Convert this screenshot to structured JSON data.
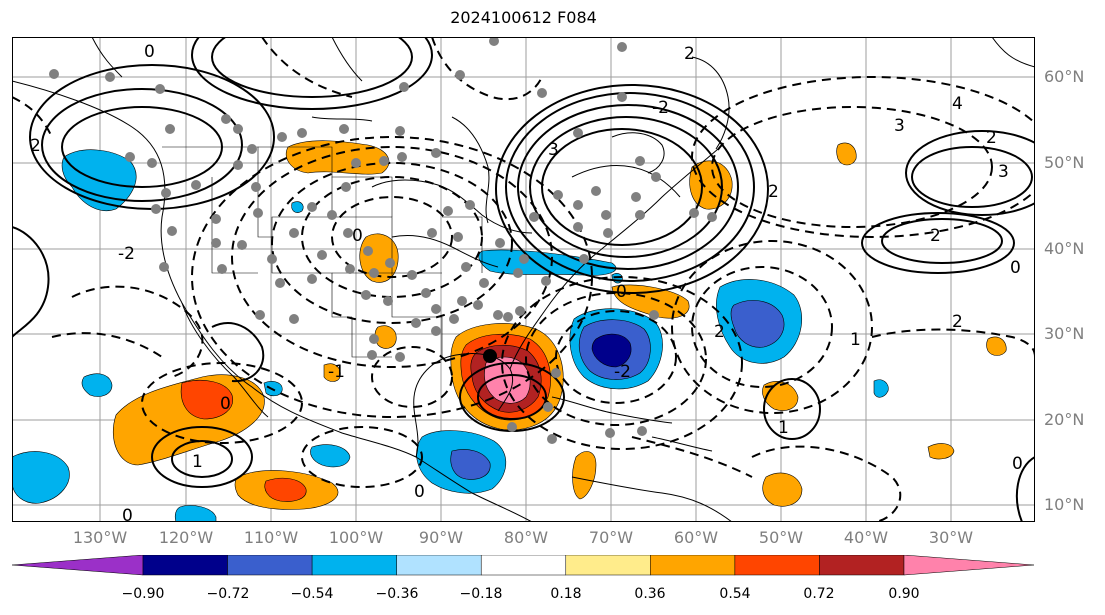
{
  "title": "2024100612 F084",
  "lat_labels": [
    "60°N",
    "50°N",
    "40°N",
    "30°N",
    "20°N",
    "10°N"
  ],
  "lon_labels": [
    "130°W",
    "120°W",
    "110°W",
    "100°W",
    "90°W",
    "80°W",
    "70°W",
    "60°W",
    "50°W",
    "40°W",
    "30°W"
  ],
  "colorbar": {
    "ticks": [
      "−0.90",
      "−0.72",
      "−0.54",
      "−0.36",
      "−0.18",
      "0.18",
      "0.36",
      "0.54",
      "0.72",
      "0.90"
    ],
    "colors": [
      "#9b30c8",
      "#00008b",
      "#3a5fcd",
      "#00b2ee",
      "#b0e2ff",
      "#ffffff",
      "#ffec8b",
      "#ffa500",
      "#ff4500",
      "#b22222",
      "#ff82ab"
    ]
  },
  "contour_labels": [
    "0",
    "1",
    "2",
    "3",
    "4",
    "-1",
    "-2"
  ]
}
